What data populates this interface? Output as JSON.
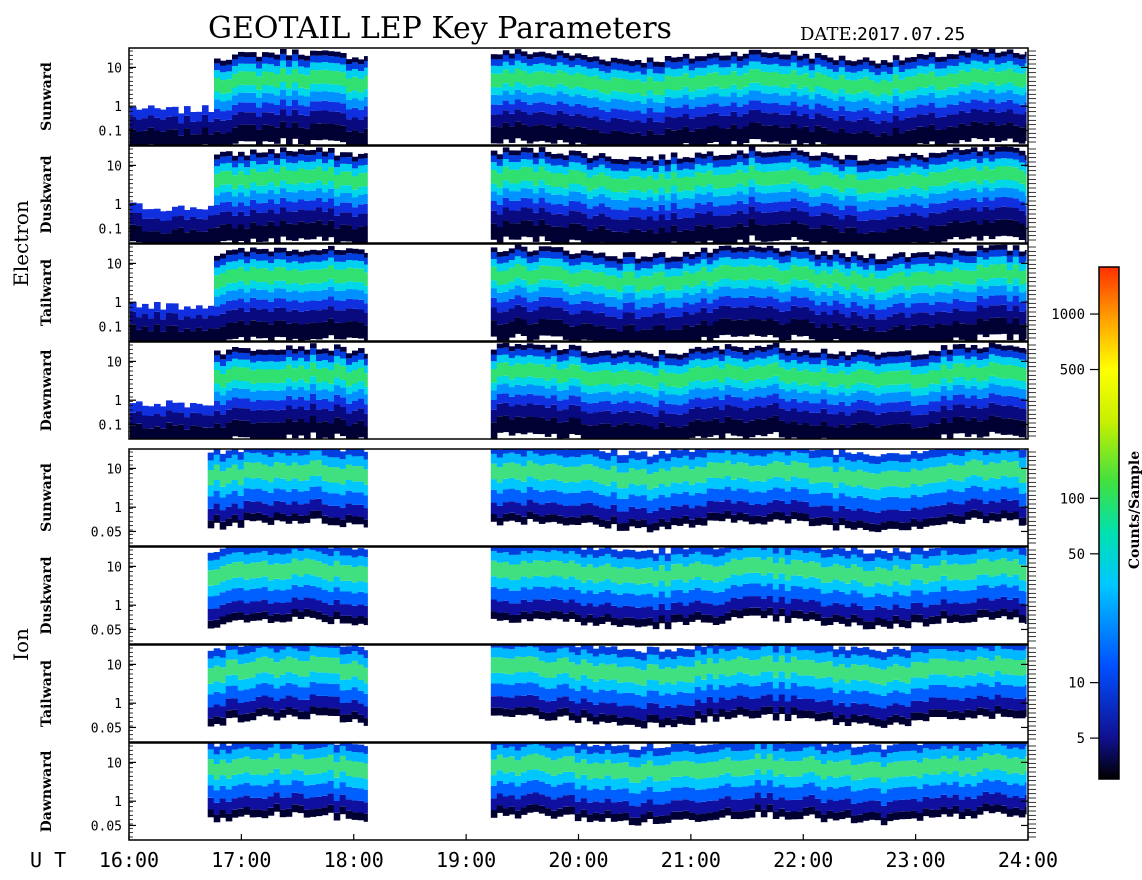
{
  "header": {
    "title": "GEOTAIL LEP Key Parameters",
    "date_label": "DATE:",
    "date_value": "2017.07.25"
  },
  "chart_data": {
    "type": "heatmap",
    "title": "GEOTAIL LEP Key Parameters",
    "x_axis": {
      "label": "U T",
      "start_hour": 16,
      "end_hour": 24,
      "ticks": [
        "16:00",
        "17:00",
        "18:00",
        "19:00",
        "20:00",
        "21:00",
        "22:00",
        "23:00",
        "24:00"
      ]
    },
    "data_gap_hours": [
      18.12,
      19.22
    ],
    "groups": [
      {
        "name": "Electron",
        "y_ticks": [
          "10",
          "1",
          "0.1"
        ],
        "y_range": [
          0.05,
          30
        ],
        "y_scale": "log",
        "panels": [
          {
            "label": "Sunward"
          },
          {
            "label": "Duskward"
          },
          {
            "label": "Tailward"
          },
          {
            "label": "Dawnward"
          }
        ]
      },
      {
        "name": "Ion",
        "y_ticks": [
          "10",
          "1",
          "0.05"
        ],
        "y_range": [
          0.04,
          30
        ],
        "y_scale": "log",
        "panels": [
          {
            "label": "Sunward"
          },
          {
            "label": "Duskward"
          },
          {
            "label": "Tailward"
          },
          {
            "label": "Dawnward"
          }
        ]
      }
    ],
    "colorbar": {
      "label": "Counts/Sample",
      "scale": "log",
      "range": [
        3,
        1800
      ],
      "ticks": [
        "1000",
        "500",
        "100",
        "50",
        "10",
        "5"
      ],
      "tick_values": [
        1000,
        500,
        100,
        50,
        10,
        5
      ],
      "colors": [
        "#000000",
        "#101090",
        "#0050ff",
        "#00c8ff",
        "#00e0b0",
        "#40e040",
        "#c8f000",
        "#ffff00",
        "#ffa000",
        "#ff3000"
      ]
    }
  }
}
